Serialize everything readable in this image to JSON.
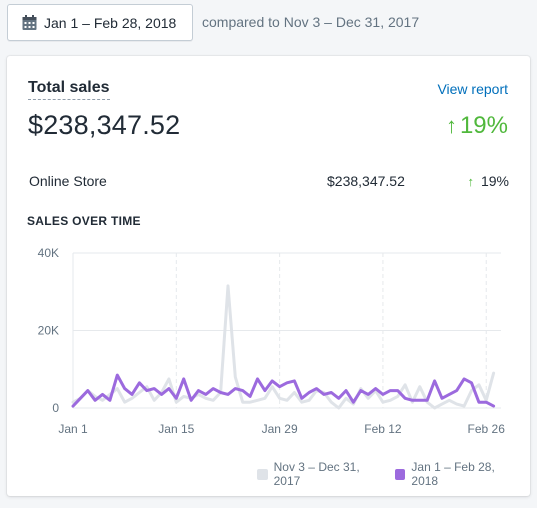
{
  "header": {
    "date_range": "Jan 1 – Feb 28, 2018",
    "calendar_icon": "calendar-icon",
    "compared_text": "compared to Nov 3 – Dec 31, 2017"
  },
  "card": {
    "title": "Total sales",
    "view_report": "View report",
    "total_value": "$238,347.52",
    "change_arrow": "↑",
    "change_pct": "19%",
    "breakdown": {
      "label": "Online Store",
      "amount": "$238,347.52",
      "arrow": "↑",
      "pct": "19%"
    },
    "section_title": "SALES OVER TIME"
  },
  "colors": {
    "current": "#9c6ade",
    "previous": "#dfe3e8",
    "positive": "#50b83c",
    "link": "#006fbb"
  },
  "chart_data": {
    "type": "line",
    "x_tick_labels": [
      "Jan 1",
      "Jan 15",
      "Jan 29",
      "Feb 12",
      "Feb 26"
    ],
    "x_tick_days": [
      0,
      14,
      28,
      42,
      56
    ],
    "y_tick_labels": [
      "0",
      "20K",
      "40K"
    ],
    "y_tick_values": [
      0,
      20000,
      40000
    ],
    "ylim": [
      0,
      40000
    ],
    "xlim": [
      0,
      58
    ],
    "grid": true,
    "legend_position": "bottom-right",
    "series": [
      {
        "name": "Nov 3 – Dec 31, 2017",
        "color": "#dfe3e8",
        "values": [
          1500,
          2500,
          4500,
          3000,
          2000,
          3500,
          5000,
          1500,
          2500,
          4000,
          5500,
          2000,
          4000,
          7500,
          1500,
          3000,
          2500,
          3500,
          2500,
          2000,
          4000,
          31500,
          8000,
          1500,
          1500,
          2000,
          2500,
          5500,
          2500,
          2000,
          4000,
          1500,
          2000,
          4500,
          4000,
          1500,
          0,
          2500,
          1000,
          5000,
          2500,
          4500,
          1500,
          2000,
          3000,
          6000,
          1500,
          5500,
          1500,
          0,
          1000,
          2000,
          1000,
          500,
          4500,
          6000,
          2000,
          9000
        ]
      },
      {
        "name": "Jan 1 – Feb 28, 2018",
        "color": "#9c6ade",
        "values": [
          500,
          2500,
          4500,
          2000,
          3500,
          2000,
          8500,
          5000,
          3500,
          6500,
          4500,
          5000,
          3500,
          5000,
          2500,
          7500,
          2000,
          4500,
          3500,
          5000,
          4000,
          3500,
          5000,
          4500,
          3000,
          7500,
          4500,
          7000,
          5500,
          6500,
          7000,
          2500,
          4000,
          5000,
          3500,
          4000,
          2500,
          4500,
          1500,
          4500,
          3500,
          5000,
          3500,
          4500,
          4500,
          2500,
          2000,
          2000,
          2000,
          7000,
          2500,
          3500,
          4500,
          7500,
          6500,
          1500,
          1500,
          500
        ]
      }
    ]
  }
}
